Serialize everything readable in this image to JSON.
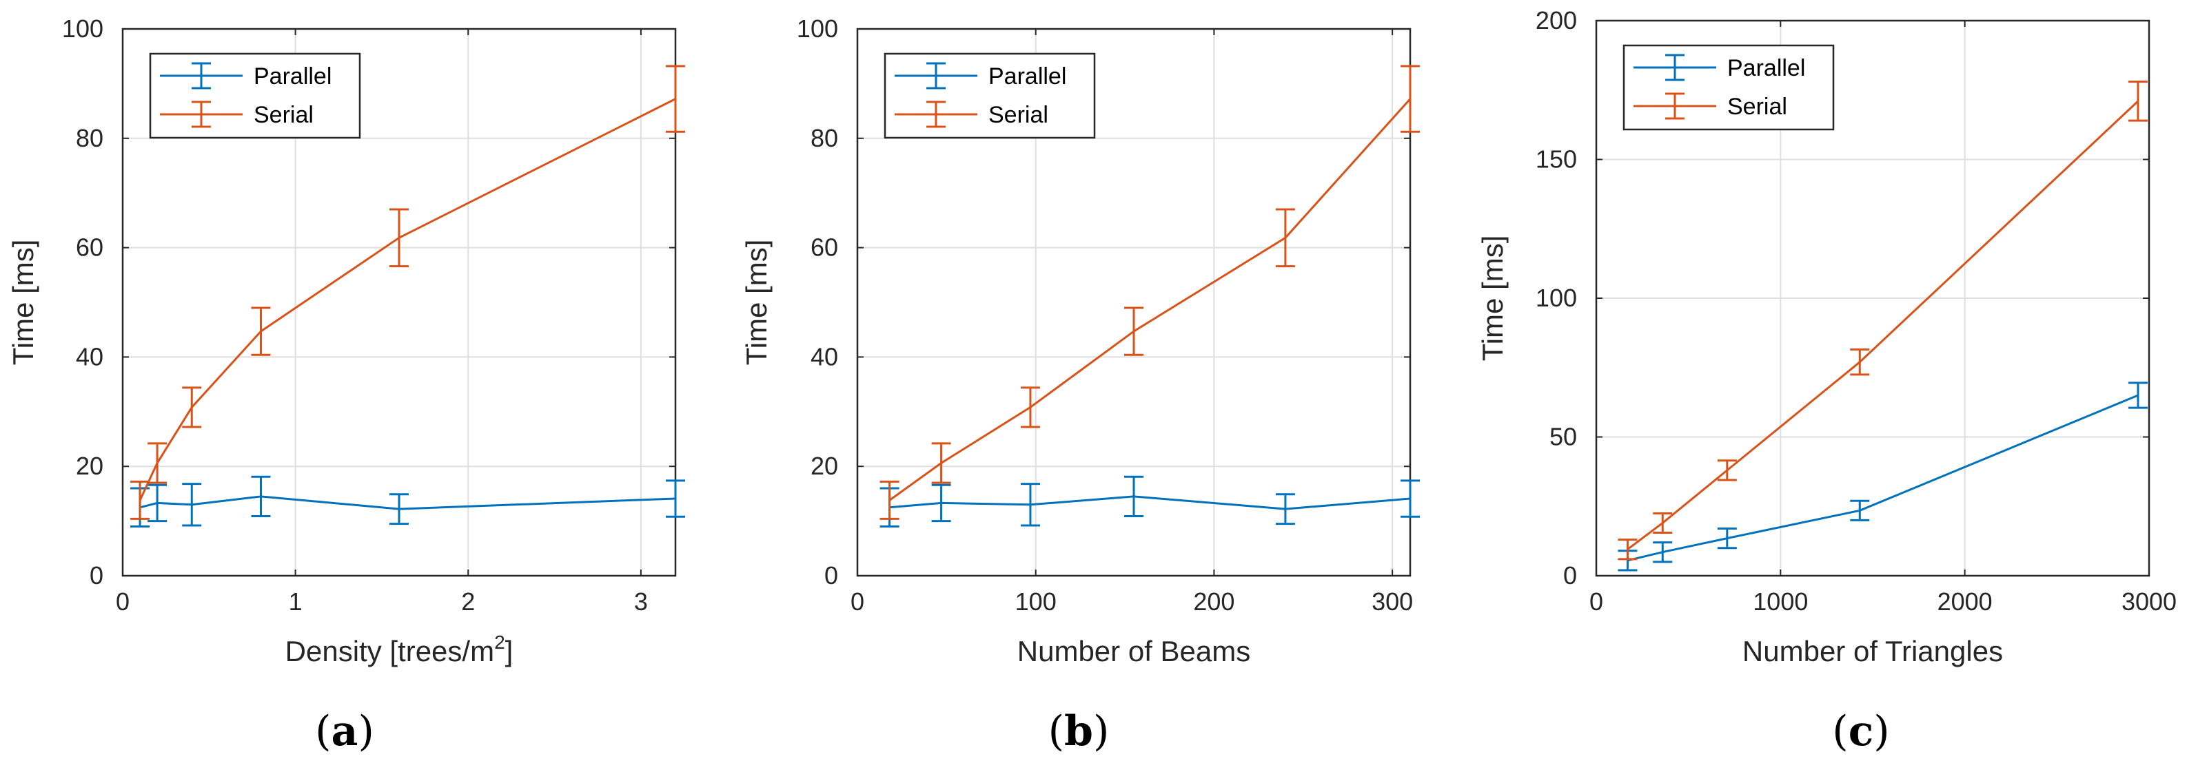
{
  "colors": {
    "parallel": "#0072BD",
    "serial": "#D95319",
    "grid": "#DFDFDF",
    "axis": "#262626"
  },
  "chart_data": [
    {
      "type": "line",
      "caption_letter": "a",
      "xlabel": "Density [trees/m",
      "xlabel_superscript": "2",
      "xlabel_suffix": "]",
      "ylabel": "Time [ms]",
      "xlim": [
        0,
        3.2
      ],
      "ylim": [
        0,
        100
      ],
      "xticks": [
        0,
        1,
        2,
        3
      ],
      "yticks": [
        0,
        20,
        40,
        60,
        80,
        100
      ],
      "legend": [
        "Parallel",
        "Serial"
      ],
      "series": [
        {
          "name": "Parallel",
          "x": [
            0.1,
            0.2,
            0.4,
            0.8,
            1.6,
            3.2
          ],
          "y": [
            12.5,
            13.3,
            13.0,
            14.5,
            12.2,
            14.1
          ],
          "err": [
            3.5,
            3.3,
            3.8,
            3.6,
            2.7,
            3.3
          ]
        },
        {
          "name": "Serial",
          "x": [
            0.1,
            0.2,
            0.4,
            0.8,
            1.6,
            3.2
          ],
          "y": [
            13.8,
            20.6,
            30.8,
            44.7,
            61.8,
            87.2
          ],
          "err": [
            3.4,
            3.6,
            3.6,
            4.3,
            5.2,
            6.0
          ]
        }
      ]
    },
    {
      "type": "line",
      "caption_letter": "b",
      "xlabel": "Number of Beams",
      "xlabel_superscript": "",
      "xlabel_suffix": "",
      "ylabel": "Time [ms]",
      "xlim": [
        0,
        310
      ],
      "ylim": [
        0,
        100
      ],
      "xticks": [
        0,
        100,
        200,
        300
      ],
      "yticks": [
        0,
        20,
        40,
        60,
        80,
        100
      ],
      "legend": [
        "Parallel",
        "Serial"
      ],
      "series": [
        {
          "name": "Parallel",
          "x": [
            18,
            47,
            97,
            155,
            240,
            310
          ],
          "y": [
            12.5,
            13.3,
            13.0,
            14.5,
            12.2,
            14.1
          ],
          "err": [
            3.5,
            3.3,
            3.8,
            3.6,
            2.7,
            3.3
          ]
        },
        {
          "name": "Serial",
          "x": [
            18,
            47,
            97,
            155,
            240,
            310
          ],
          "y": [
            13.8,
            20.6,
            30.8,
            44.7,
            61.8,
            87.2
          ],
          "err": [
            3.4,
            3.6,
            3.6,
            4.3,
            5.2,
            6.0
          ]
        }
      ]
    },
    {
      "type": "line",
      "caption_letter": "c",
      "xlabel": "Number of Triangles",
      "xlabel_superscript": "",
      "xlabel_suffix": "",
      "ylabel": "Time [ms]",
      "xlim": [
        0,
        3000
      ],
      "ylim": [
        0,
        200
      ],
      "xticks": [
        0,
        1000,
        2000,
        3000
      ],
      "yticks": [
        0,
        50,
        100,
        150,
        200
      ],
      "legend": [
        "Parallel",
        "Serial"
      ],
      "series": [
        {
          "name": "Parallel",
          "x": [
            170,
            360,
            710,
            1430,
            2940
          ],
          "y": [
            5.5,
            8.5,
            13.5,
            23.5,
            65.0
          ],
          "err": [
            3.5,
            3.5,
            3.5,
            3.5,
            4.5
          ]
        },
        {
          "name": "Serial",
          "x": [
            170,
            360,
            710,
            1430,
            2940
          ],
          "y": [
            9.5,
            19.0,
            38.0,
            77.0,
            171.0
          ],
          "err": [
            3.5,
            3.5,
            3.5,
            4.5,
            7.0
          ]
        }
      ]
    }
  ]
}
